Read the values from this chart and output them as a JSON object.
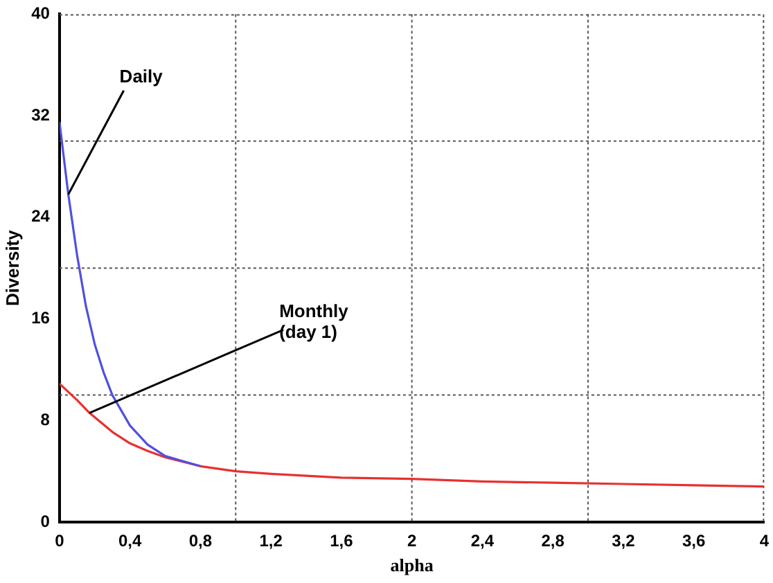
{
  "chart_data": {
    "type": "line",
    "xlabel": "alpha",
    "ylabel": "Diversity",
    "xlim": [
      0,
      4
    ],
    "xticks": [
      0,
      {
        "value": 0.4,
        "label": "0,4"
      },
      {
        "value": 0.8,
        "label": "0,8"
      },
      {
        "value": 1.2,
        "label": "1,2"
      },
      {
        "value": 1.6,
        "label": "1,6"
      },
      2,
      {
        "value": 2.4,
        "label": "2,4"
      },
      {
        "value": 2.8,
        "label": "2,8"
      },
      {
        "value": 3.2,
        "label": "3,2"
      },
      {
        "value": 3.6,
        "label": "3,6"
      },
      4
    ],
    "ylim": [
      0,
      40
    ],
    "yticks": [
      0,
      8,
      16,
      24,
      32,
      40
    ],
    "grid": false,
    "legend": false,
    "marker": "none",
    "line_style": "solid",
    "series": [
      {
        "color": "#5050e0",
        "x": [
          0,
          0.05,
          0.1,
          0.15,
          0.2,
          0.25,
          0.3,
          0.4,
          0.5,
          0.6,
          0.8
        ],
        "values": [
          31.5,
          25.8,
          21,
          17,
          14,
          11.8,
          10,
          7.6,
          6.1,
          5.2,
          4.4
        ]
      },
      {
        "color": "#e83030",
        "x": [
          0,
          0.1,
          0.17,
          0.3,
          0.4,
          0.5,
          0.6,
          0.8,
          1.0,
          1.2,
          1.6,
          2,
          2.4,
          2.8,
          3.2,
          3.6,
          4
        ],
        "values": [
          10.9,
          9.6,
          8.6,
          7.1,
          6.2,
          5.6,
          5.1,
          4.4,
          4.0,
          3.8,
          3.5,
          3.4,
          3.2,
          3.1,
          3.0,
          2.9,
          2.8
        ]
      }
    ],
    "annotations": [
      {
        "text": "Daily",
        "x": 0.05,
        "y": 25.8
      },
      {
        "text": "Monthly\n(day 1)",
        "x": 0.17,
        "y": 8.6
      }
    ],
    "ref_lines": [
      {
        "axis": "x",
        "value": 1,
        "color": "#555555",
        "line_style": "dotted"
      },
      {
        "axis": "x",
        "value": 2,
        "color": "#555555",
        "line_style": "dotted"
      },
      {
        "axis": "x",
        "value": 3,
        "color": "#555555",
        "line_style": "dotted"
      },
      {
        "axis": "y",
        "value": 10,
        "color": "#555555",
        "line_style": "dotted"
      },
      {
        "axis": "y",
        "value": 20,
        "color": "#555555",
        "line_style": "dotted"
      },
      {
        "axis": "y",
        "value": 30,
        "color": "#555555",
        "line_style": "dotted"
      }
    ]
  }
}
